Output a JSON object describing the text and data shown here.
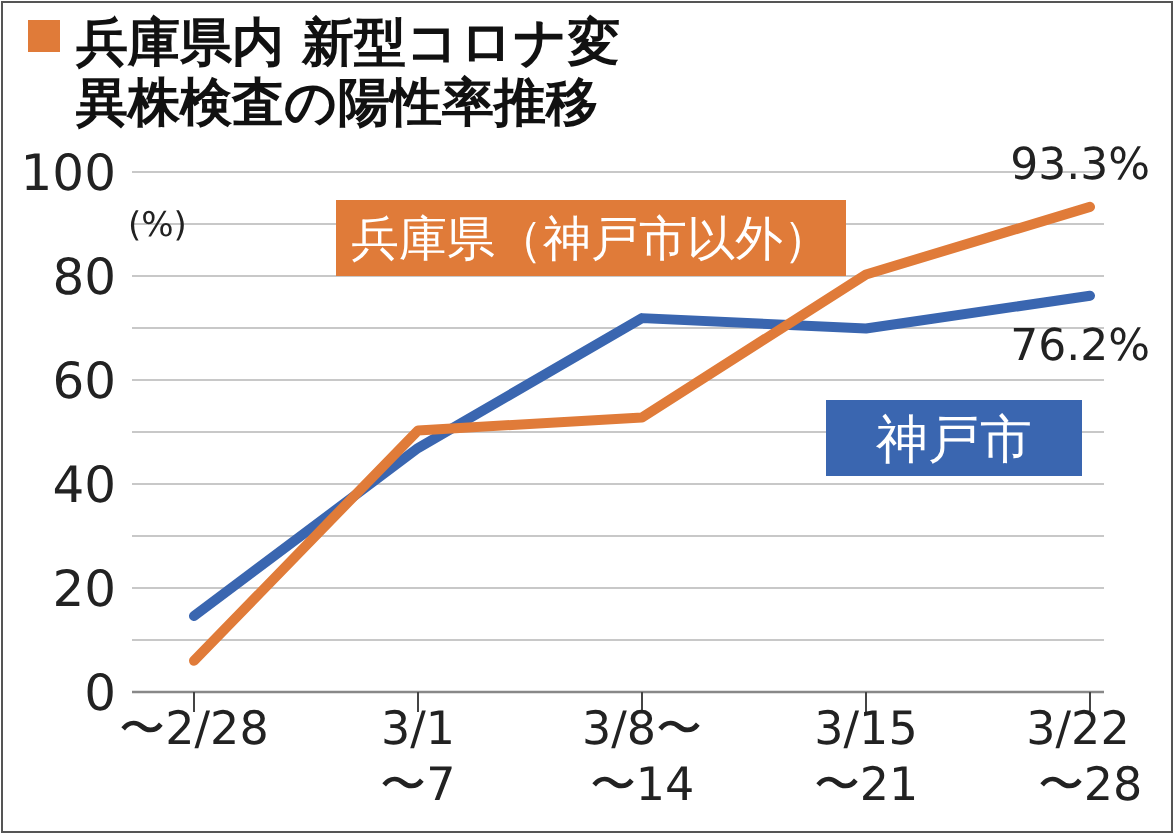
{
  "chart_data": {
    "type": "line",
    "title": "兵庫県内 新型コロナ変異株検査の陽性率推移",
    "ylabel": "(%)",
    "categories": [
      "〜2/28",
      "3/1〜7",
      "3/8〜〜14",
      "3/15〜21",
      "3/22〜28"
    ],
    "series": [
      {
        "name": "兵庫県（神戸市以外）",
        "color": "#e07b39",
        "values": [
          6.0,
          50.3,
          52.8,
          80.3,
          93.3
        ],
        "value_labels": [
          null,
          null,
          null,
          null,
          "93.3%"
        ]
      },
      {
        "name": "神戸市",
        "color": "#3a66b0",
        "values": [
          14.6,
          46.9,
          71.9,
          69.9,
          76.2
        ],
        "value_labels": [
          null,
          null,
          null,
          null,
          "76.2%"
        ]
      }
    ],
    "ylim": [
      0,
      100
    ],
    "yticks": [
      0,
      {
        "value": 10,
        "label": null
      },
      20,
      {
        "value": 30,
        "label": null
      },
      40,
      {
        "value": 50,
        "label": null
      },
      60,
      {
        "value": 70,
        "label": null
      },
      80,
      {
        "value": 90,
        "label": null
      },
      100
    ],
    "grid": "y",
    "marker": "none",
    "line_style": "solid"
  }
}
